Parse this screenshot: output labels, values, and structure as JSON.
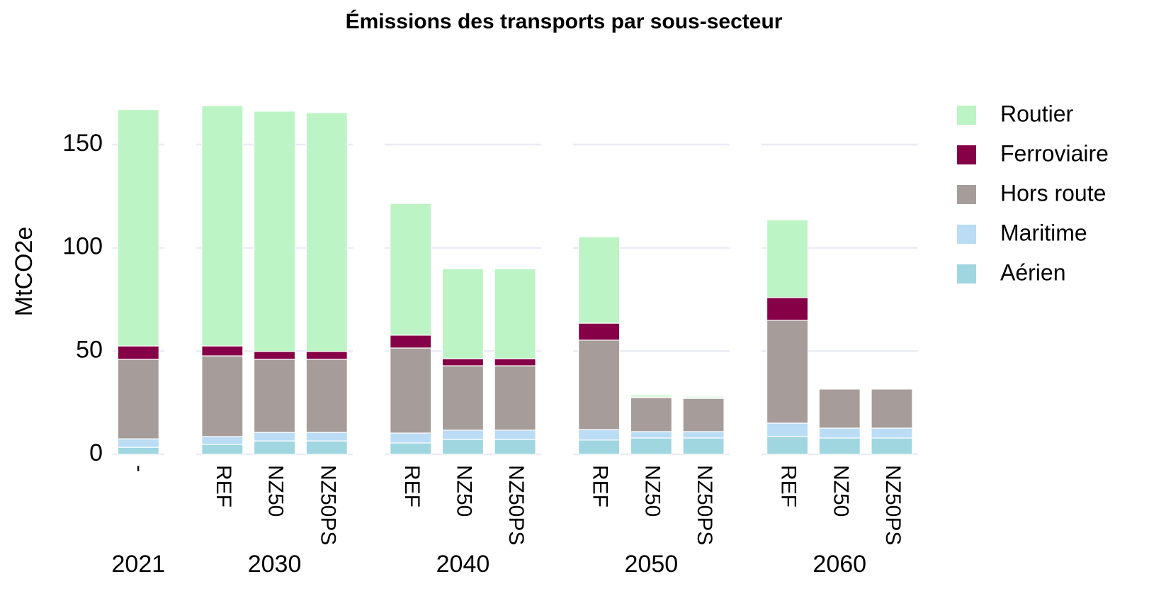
{
  "chart_data": {
    "type": "stacked_bar",
    "title": "Émissions des transports par sous-secteur",
    "y_label": "MtCO2e",
    "panels": [
      {
        "label": "2021",
        "categories": [
          "-"
        ]
      },
      {
        "label": "2030",
        "categories": [
          "REF",
          "NZ50",
          "NZ50PS"
        ]
      },
      {
        "label": "2040",
        "categories": [
          "REF",
          "NZ50",
          "NZ50PS"
        ]
      },
      {
        "label": "2050",
        "categories": [
          "REF",
          "NZ50",
          "NZ50PS"
        ]
      },
      {
        "label": "2060",
        "categories": [
          "REF",
          "NZ50",
          "NZ50PS"
        ]
      }
    ],
    "series": [
      {
        "name": "Routier",
        "color": "#bdf4c5",
        "values": [
          114.5,
          116.4,
          116.4,
          115.7,
          63.8,
          43.6,
          43.6,
          41.9,
          1.0,
          0.7,
          37.7,
          0,
          0
        ]
      },
      {
        "name": "Ferroviaire",
        "color": "#850046",
        "values": [
          6.5,
          4.8,
          3.8,
          3.8,
          6.2,
          3.4,
          3.4,
          8.2,
          0.3,
          0.3,
          11.0,
          0,
          0
        ]
      },
      {
        "name": "Hors route",
        "color": "#a69d9b",
        "values": [
          38.5,
          39.1,
          35.4,
          35.4,
          41.2,
          31.2,
          31.2,
          43.3,
          16.5,
          16.1,
          49.8,
          18.9,
          18.9
        ]
      },
      {
        "name": "Maritime",
        "color": "#badcf5",
        "values": [
          4.1,
          3.8,
          4.1,
          4.1,
          4.8,
          4.5,
          4.5,
          5.1,
          3.1,
          3.1,
          6.5,
          4.8,
          4.8
        ]
      },
      {
        "name": "Aérien",
        "color": "#9fd6e0",
        "values": [
          3.4,
          4.8,
          6.5,
          6.5,
          5.5,
          7.2,
          7.2,
          6.9,
          7.9,
          7.9,
          8.6,
          7.9,
          7.9
        ]
      }
    ],
    "ylim": [
      0,
      170
    ],
    "yticks": [
      0,
      50,
      100,
      150
    ],
    "grid": true,
    "legend": "right"
  }
}
